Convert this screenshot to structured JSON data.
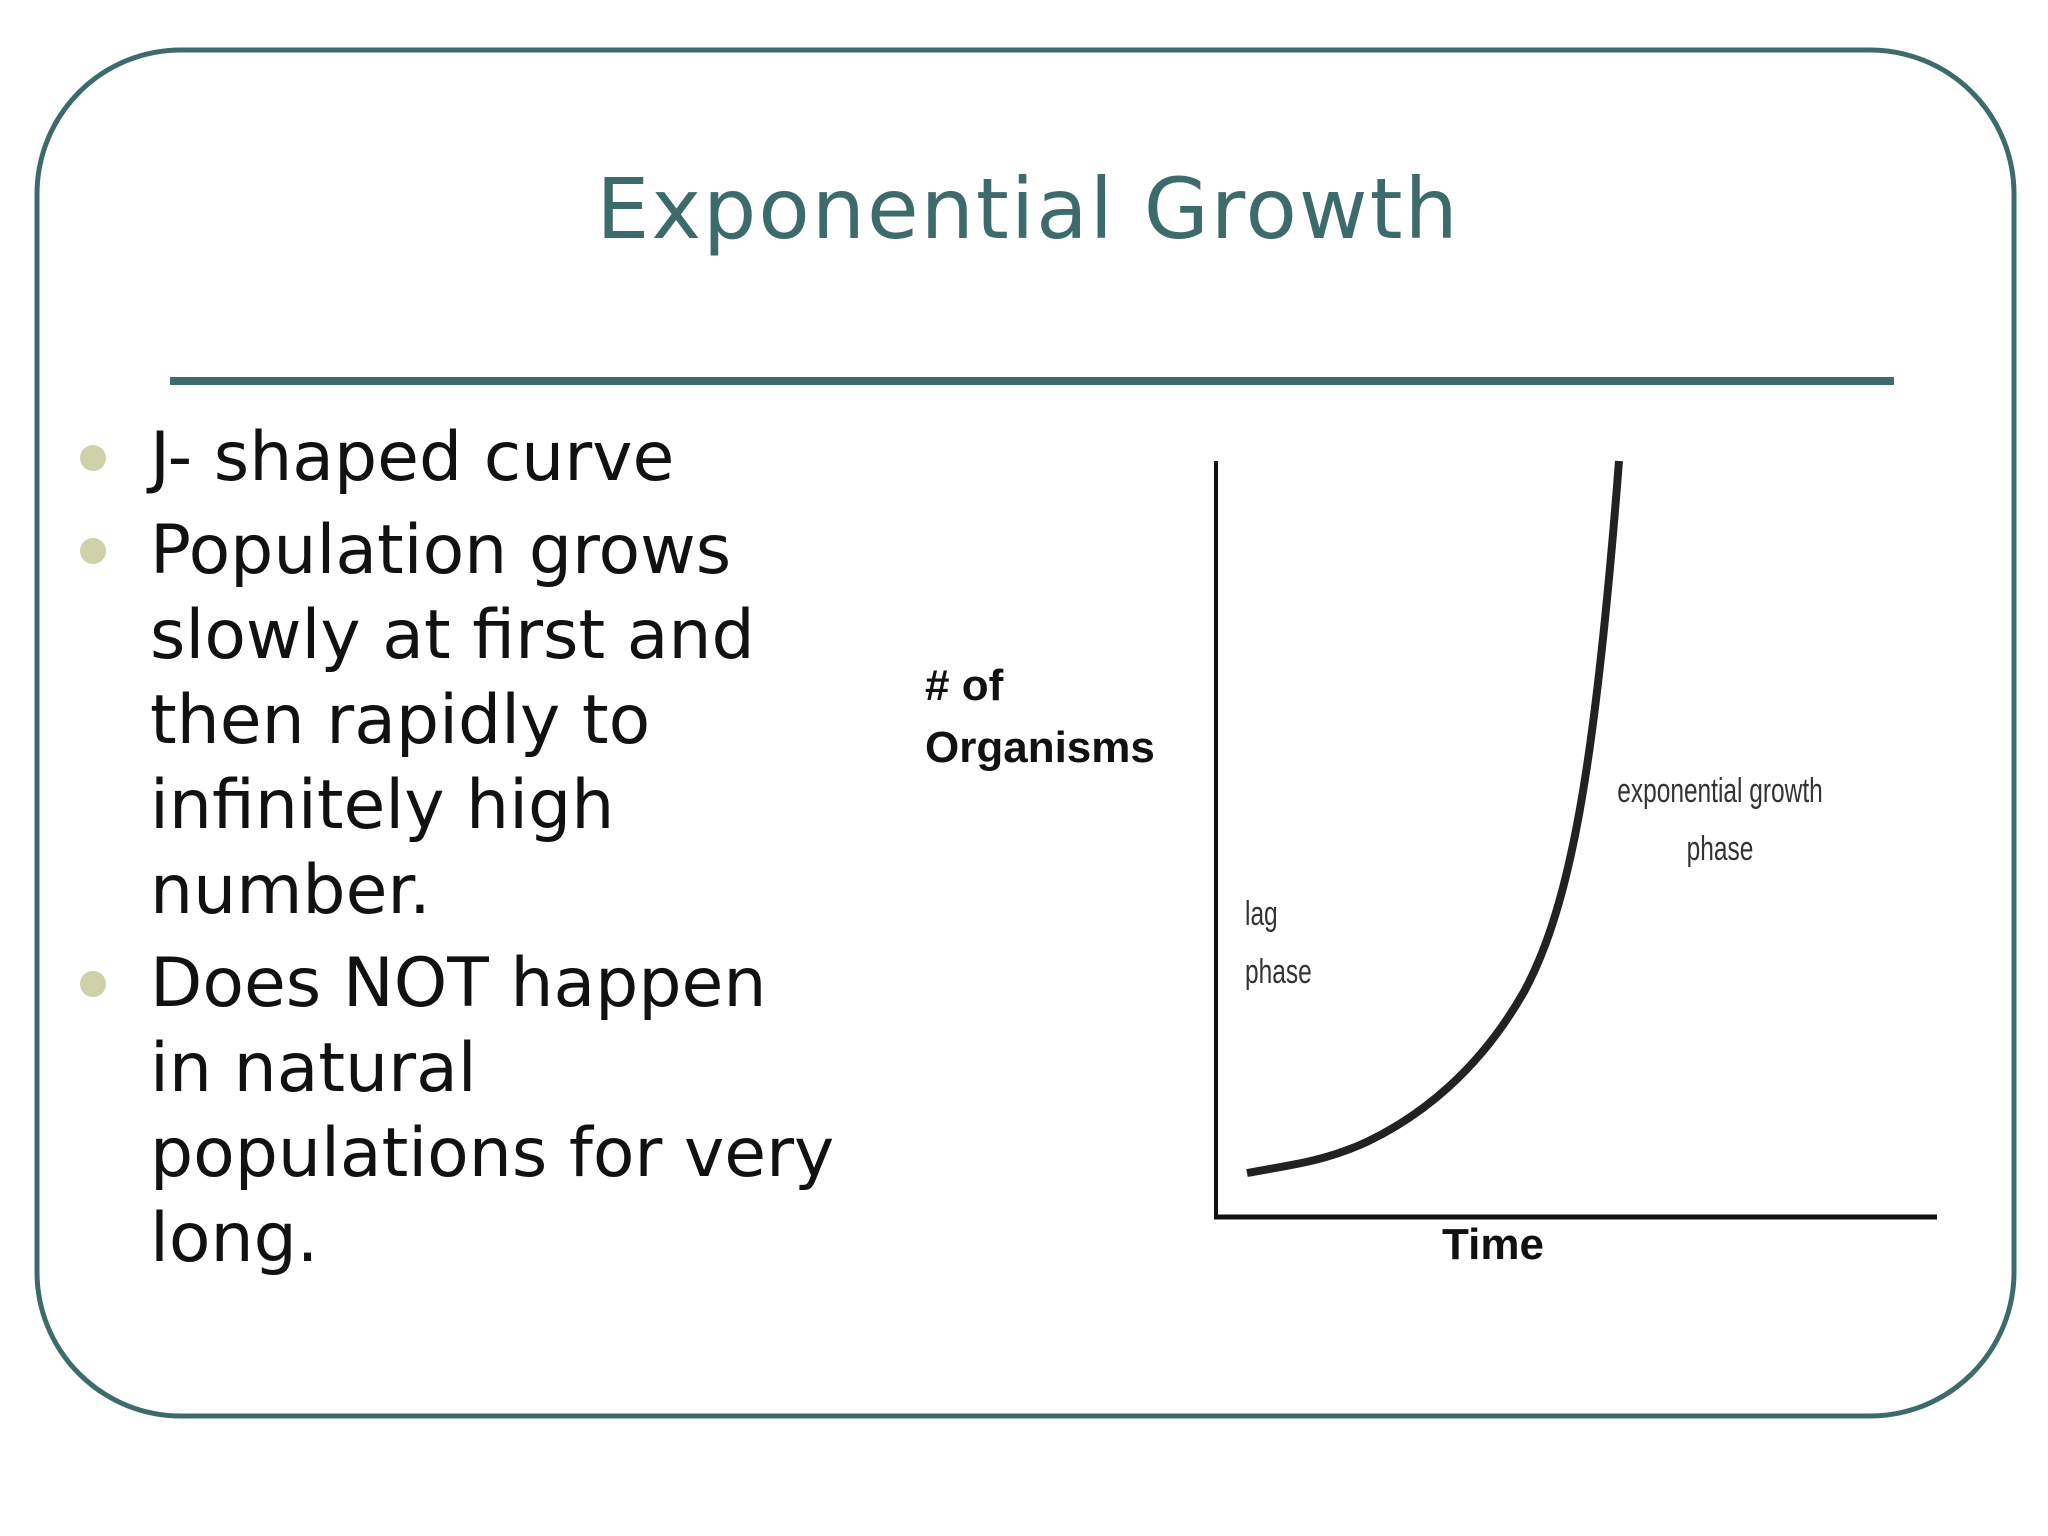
{
  "title": "Exponential Growth",
  "bullets": [
    "J- shaped curve",
    "Population grows slowly at first and then rapidly to infinitely high number.",
    "Does NOT happen in natural populations for very long."
  ],
  "figure": {
    "y_label": "# of Organisms",
    "x_label": "Time",
    "annotations": [
      "lag phase",
      "exponential growth phase"
    ]
  }
}
